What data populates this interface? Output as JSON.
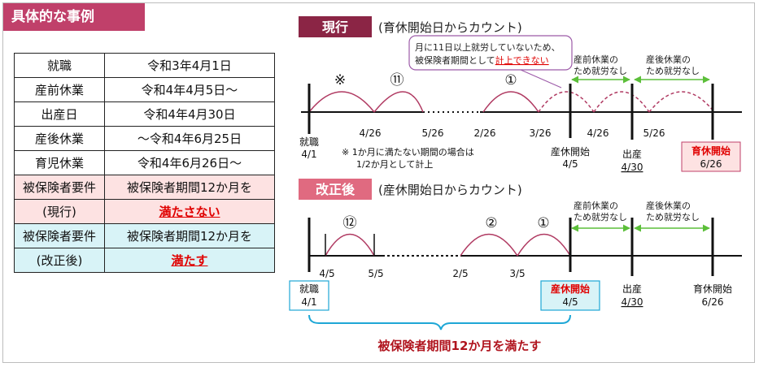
{
  "section_title": "具体的な事例",
  "table": {
    "rows": [
      {
        "label": "就職",
        "value": "令和3年4月1日"
      },
      {
        "label": "産前休業",
        "value": "令和4年4月5日～"
      },
      {
        "label": "出産日",
        "value": "令和4年4月30日"
      },
      {
        "label": "産後休業",
        "value": "～令和4年6月25日"
      },
      {
        "label": "育児休業",
        "value": "令和4年6月26日～"
      }
    ],
    "current": {
      "label1": "被保険者要件",
      "label2": "(現行)",
      "value1": "被保険者期間12か月を",
      "value2": "満たさない"
    },
    "revised": {
      "label1": "被保険者要件",
      "label2": "(改正後)",
      "value1": "被保険者期間12か月を",
      "value2": "満たす"
    }
  },
  "current": {
    "badge": "現行",
    "subtitle": "(育休開始日からカウント)",
    "callout1": "月に11日以上就労していないため、",
    "callout2a": "被保険者期間として",
    "callout2b": "計上できない",
    "prebirth1": "産前休業の",
    "prebirth2": "ため就労なし",
    "postbirth1": "産後休業の",
    "postbirth2": "ため就労なし",
    "marks": {
      "note": "※",
      "m11": "⑪",
      "m1": "①"
    },
    "ticks": {
      "t1": "4/26",
      "t2": "5/26",
      "t3": "2/26",
      "t4": "3/26",
      "t5": "4/26",
      "t6": "5/26"
    },
    "start1": "就職",
    "start2": "4/1",
    "footnote1": "※ 1か月に満たない期間の場合は",
    "footnote2": "1/2か月として計上",
    "leave1": "産休開始",
    "leave2": "4/5",
    "birth1": "出産",
    "birth2": "4/30",
    "childcare1": "育休開始",
    "childcare2": "6/26"
  },
  "revised": {
    "badge": "改正後",
    "subtitle": "(産休開始日からカウント)",
    "prebirth1": "産前休業の",
    "prebirth2": "ため就労なし",
    "postbirth1": "産後休業の",
    "postbirth2": "ため就労なし",
    "marks": {
      "m12": "⑫",
      "m2": "②",
      "m1": "①"
    },
    "ticks": {
      "t1": "4/5",
      "t2": "5/5",
      "t3": "2/5",
      "t4": "3/5"
    },
    "start1": "就職",
    "start2": "4/1",
    "leave1": "産休開始",
    "leave2": "4/5",
    "birth1": "出産",
    "birth2": "4/30",
    "childcare1": "育休開始",
    "childcare2": "6/26",
    "conclusion": "被保険者期間12か月を満たす"
  },
  "colors": {
    "title": "#c0406a",
    "badge_current": "#8b2545",
    "badge_revised": "#e06a80",
    "arc": "#b03a62",
    "green": "#5cbf3a",
    "cyan": "#1ea7d6",
    "red": "#e00000",
    "conclusion": "#b0141e"
  }
}
